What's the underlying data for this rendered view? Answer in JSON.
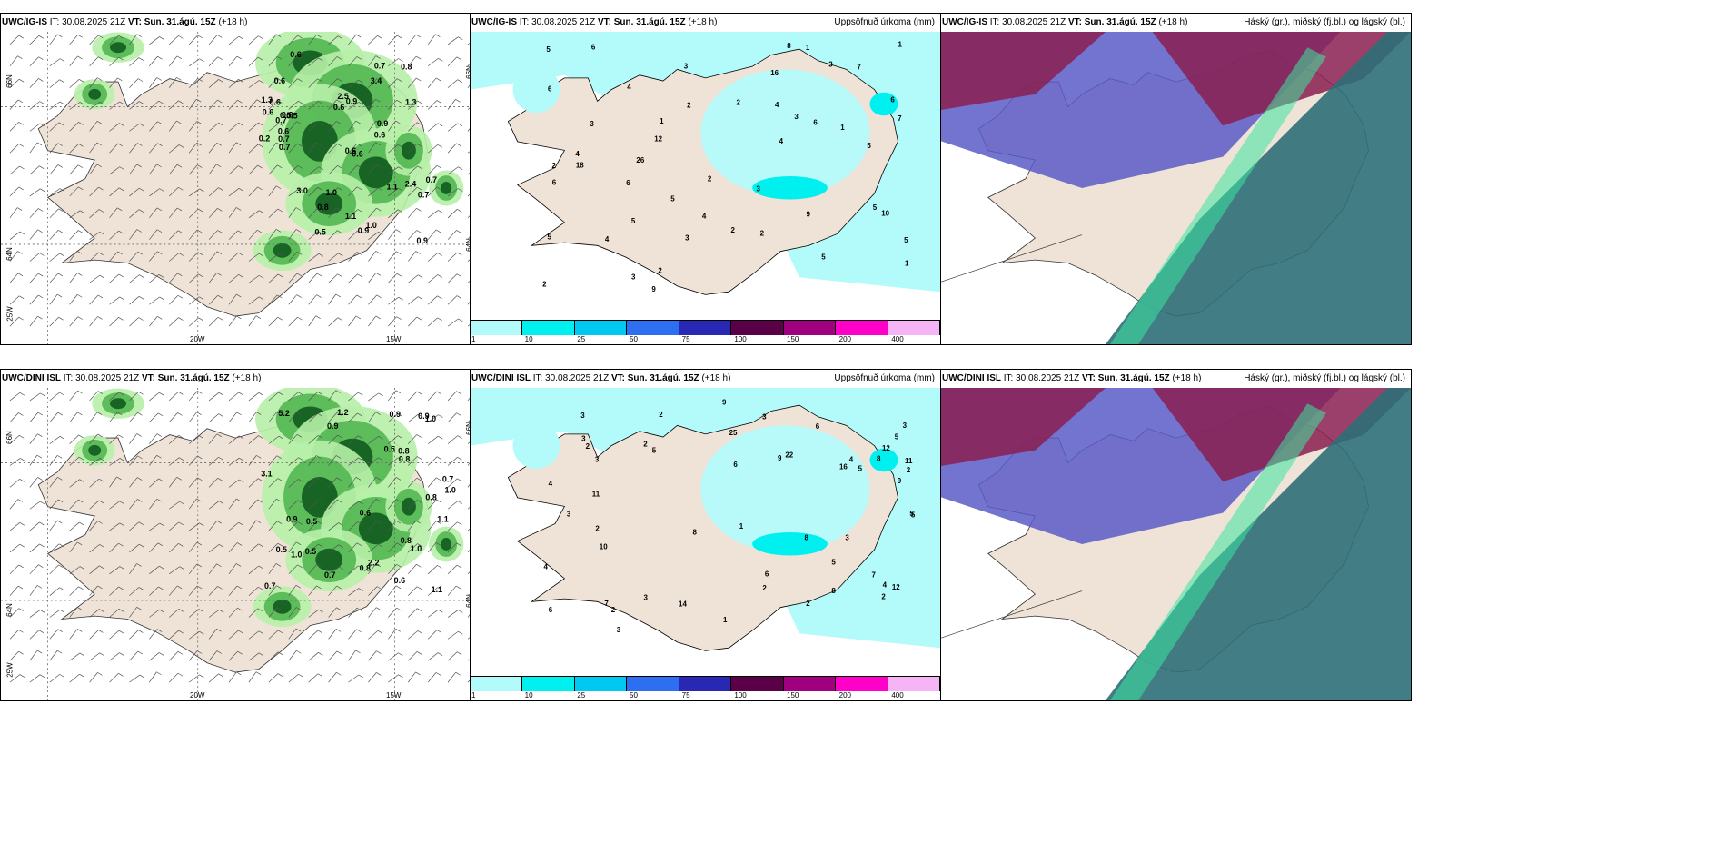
{
  "panels": [
    {
      "model": "UWC/IG-IS",
      "init": "IT: 30.08.2025 21Z",
      "vt_label": "VT:",
      "vt": "Sun. 31.ágú. 15Z",
      "lead": "(+18 h)",
      "title": "",
      "kind": "wind"
    },
    {
      "model": "UWC/IG-IS",
      "init": "IT: 30.08.2025 21Z",
      "vt_label": "VT:",
      "vt": "Sun. 31.ágú. 15Z",
      "lead": "(+18 h)",
      "title": "Uppsöfnuð úrkoma (mm)",
      "kind": "precip"
    },
    {
      "model": "UWC/IG-IS",
      "init": "IT: 30.08.2025 21Z",
      "vt_label": "VT:",
      "vt": "Sun. 31.ágú. 15Z",
      "lead": "(+18 h)",
      "title": "Háský (gr.), miðský (fj.bl.) og lágský (bl.)",
      "kind": "cloud"
    },
    {
      "model": "UWC/DINI ISL",
      "init": "IT: 30.08.2025 21Z",
      "vt_label": "VT:",
      "vt": "Sun. 31.ágú. 15Z",
      "lead": "(+18 h)",
      "title": "",
      "kind": "wind"
    },
    {
      "model": "UWC/DINI ISL",
      "init": "IT: 30.08.2025 21Z",
      "vt_label": "VT:",
      "vt": "Sun. 31.ágú. 15Z",
      "lead": "(+18 h)",
      "title": "Uppsöfnuð úrkoma (mm)",
      "kind": "precip"
    },
    {
      "model": "UWC/DINI ISL",
      "init": "IT: 30.08.2025 21Z",
      "vt_label": "VT:",
      "vt": "Sun. 31.ágú. 15Z",
      "lead": "(+18 h)",
      "title": "Háský (gr.), miðský (fj.bl.) og lágský (bl.)",
      "kind": "cloud"
    }
  ],
  "axis_labels": {
    "lat66": "66N",
    "lat64": "64N",
    "lon20": "20W",
    "lon15": "15W",
    "lon25": "25W"
  },
  "precip_scale": {
    "ticks": [
      "1",
      "10",
      "25",
      "50",
      "75",
      "100",
      "150",
      "200",
      "400"
    ],
    "colors": [
      "#b3fbfb",
      "#00f0f0",
      "#00c8f0",
      "#2e6ef0",
      "#2828b4",
      "#5a0046",
      "#a0007e",
      "#ff00c8",
      "#f5b4f5"
    ]
  },
  "wind_values_top": [
    "0.6",
    "0.9",
    "0.7",
    "1.0",
    "0.6",
    "0.7",
    "0.9",
    "0.5",
    "3.4",
    "1.1",
    "1.3",
    "0.8",
    "0.6",
    "0.6",
    "0.9",
    "0.7",
    "0.6",
    "0.5",
    "0.5",
    "0.6",
    "0.8",
    "0.6",
    "0.7",
    "1.0",
    "0.9",
    "1.3",
    "0.6",
    "1.1",
    "0.7",
    "2.5",
    "2.4",
    "3.0",
    "0.7",
    "0.8",
    "0.6",
    "0.2"
  ],
  "wind_values_bottom": [
    "3.1",
    "0.9",
    "1.0",
    "0.5",
    "0.7",
    "0.6",
    "0.8",
    "0.5",
    "1.0",
    "1.1",
    "0.9",
    "0.7",
    "0.5",
    "5.2",
    "1.0",
    "0.8",
    "0.7",
    "0.8",
    "1.0",
    "1.1",
    "0.5",
    "0.8",
    "0.9",
    "0.6",
    "0.8",
    "0.9",
    "1.2",
    "2.2"
  ],
  "precip_values_top": [
    "6",
    "2",
    "2",
    "5",
    "4",
    "3",
    "5",
    "6",
    "12",
    "10",
    "5",
    "3",
    "4",
    "3",
    "5",
    "4",
    "3",
    "2",
    "2",
    "4",
    "3",
    "5",
    "4",
    "7",
    "6",
    "5",
    "8",
    "6",
    "9",
    "5",
    "6",
    "16",
    "26",
    "18",
    "6",
    "9",
    "7",
    "5",
    "1",
    "3",
    "2",
    "2",
    "1",
    "4",
    "3",
    "1",
    "2",
    "2",
    "1",
    "1"
  ],
  "precip_values_bottom": [
    "2",
    "3",
    "10",
    "3",
    "4",
    "5",
    "5",
    "4",
    "3",
    "3",
    "3",
    "1",
    "5",
    "6",
    "4",
    "3",
    "6",
    "7",
    "9",
    "5",
    "6",
    "8",
    "11",
    "16",
    "12",
    "12",
    "8",
    "14",
    "25",
    "8",
    "9",
    "7",
    "6",
    "3",
    "2",
    "5",
    "4",
    "2",
    "2",
    "3",
    "2",
    "2",
    "2",
    "1",
    "3",
    "2",
    "2",
    "11",
    "22",
    "5",
    "9",
    "8"
  ]
}
